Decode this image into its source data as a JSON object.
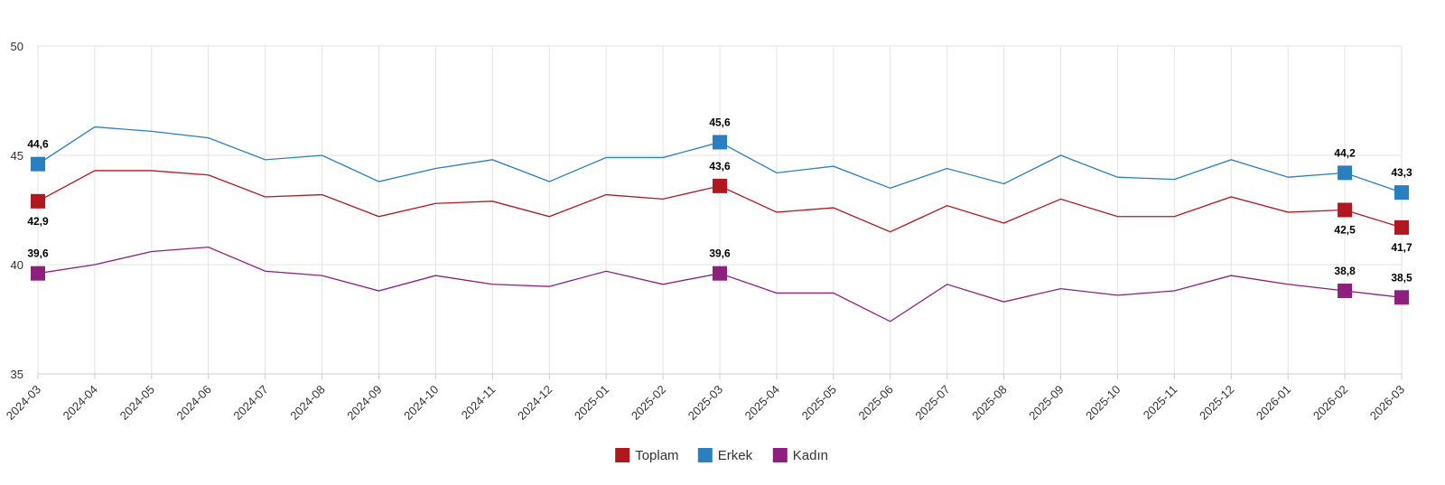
{
  "chart_data": {
    "type": "line",
    "categories": [
      "2024-03",
      "2024-04",
      "2024-05",
      "2024-06",
      "2024-07",
      "2024-08",
      "2024-09",
      "2024-10",
      "2024-11",
      "2024-12",
      "2025-01",
      "2025-02",
      "2025-03",
      "2025-04",
      "2025-05",
      "2025-06",
      "2025-07",
      "2025-08",
      "2025-09",
      "2025-10",
      "2025-11",
      "2025-12",
      "2026-01",
      "2026-02",
      "2026-03"
    ],
    "ylim": [
      35,
      50
    ],
    "yticks": [
      35,
      40,
      45,
      50
    ],
    "grid": true,
    "legend_position": "bottom-center",
    "series": [
      {
        "name": "Toplam",
        "color": "#b0171f",
        "values": [
          42.9,
          44.3,
          44.3,
          44.1,
          43.1,
          43.2,
          42.2,
          42.8,
          42.9,
          42.2,
          43.2,
          43.0,
          43.6,
          42.4,
          42.6,
          41.5,
          42.7,
          41.9,
          43.0,
          42.2,
          42.2,
          43.1,
          42.4,
          42.5,
          41.7
        ],
        "labels": [
          {
            "index": 0,
            "text": "42,9",
            "position": "below"
          },
          {
            "index": 12,
            "text": "43,6",
            "position": "above"
          },
          {
            "index": 23,
            "text": "42,5",
            "position": "below"
          },
          {
            "index": 24,
            "text": "41,7",
            "position": "below"
          }
        ]
      },
      {
        "name": "Erkek",
        "color": "#2a7fc1",
        "values": [
          44.6,
          46.3,
          46.1,
          45.8,
          44.8,
          45.0,
          43.8,
          44.4,
          44.8,
          43.8,
          44.9,
          44.9,
          45.6,
          44.2,
          44.5,
          43.5,
          44.4,
          43.7,
          45.0,
          44.0,
          43.9,
          44.8,
          44.0,
          44.2,
          43.3
        ],
        "labels": [
          {
            "index": 0,
            "text": "44,6",
            "position": "above"
          },
          {
            "index": 12,
            "text": "45,6",
            "position": "above"
          },
          {
            "index": 23,
            "text": "44,2",
            "position": "above"
          },
          {
            "index": 24,
            "text": "43,3",
            "position": "above"
          }
        ]
      },
      {
        "name": "Kadın",
        "color": "#8e1f7e",
        "values": [
          39.6,
          40.0,
          40.6,
          40.8,
          39.7,
          39.5,
          38.8,
          39.5,
          39.1,
          39.0,
          39.7,
          39.1,
          39.6,
          38.7,
          38.7,
          37.4,
          39.1,
          38.3,
          38.9,
          38.6,
          38.8,
          39.5,
          39.1,
          38.8,
          38.5
        ],
        "labels": [
          {
            "index": 0,
            "text": "39,6",
            "position": "above"
          },
          {
            "index": 12,
            "text": "39,6",
            "position": "above"
          },
          {
            "index": 23,
            "text": "38,8",
            "position": "above"
          },
          {
            "index": 24,
            "text": "38,5",
            "position": "above"
          }
        ]
      }
    ]
  }
}
